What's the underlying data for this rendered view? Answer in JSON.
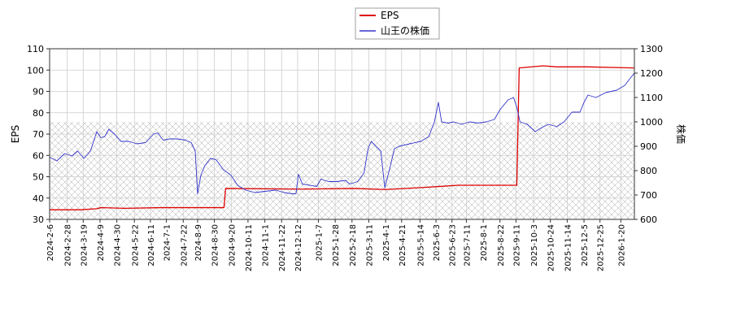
{
  "chart_data": {
    "type": "line",
    "legend": {
      "placement": "top-center",
      "items": [
        {
          "label": "EPS",
          "color": "#dd0000"
        },
        {
          "label": "山王の株価",
          "color": "#3333cc"
        }
      ]
    },
    "ylabel_left": "EPS",
    "ylabel_right": "株価",
    "y_left": {
      "min": 30,
      "max": 110,
      "ticks": [
        30,
        40,
        50,
        60,
        70,
        80,
        90,
        100,
        110
      ]
    },
    "y_right": {
      "min": 600,
      "max": 1300,
      "ticks": [
        600,
        700,
        800,
        900,
        1000,
        1100,
        1200,
        1300
      ]
    },
    "x_range": [
      "2024-02-06",
      "2026-02-06"
    ],
    "x_ticks": [
      "2024-2-6",
      "2024-2-28",
      "2024-3-19",
      "2024-4-9",
      "2024-4-30",
      "2024-5-22",
      "2024-6-11",
      "2024-7-1",
      "2024-7-22",
      "2024-8-9",
      "2024-8-30",
      "2024-9-20",
      "2024-10-11",
      "2024-11-1",
      "2024-11-22",
      "2024-12-12",
      "2025-1-7",
      "2025-1-28",
      "2025-2-18",
      "2025-3-11",
      "2025-4-1",
      "2025-4-21",
      "2025-5-14",
      "2025-6-3",
      "2025-6-23",
      "2025-7-11",
      "2025-8-1",
      "2025-8-22",
      "2025-9-11",
      "2025-10-3",
      "2025-10-24",
      "2025-11-14",
      "2025-12-5",
      "2025-12-25",
      "2026-1-20"
    ],
    "hatch_band_right_axis": [
      600,
      1000
    ],
    "grid": true,
    "series": [
      {
        "name": "EPS",
        "axis": "left",
        "color": "#dd0000",
        "points": [
          [
            "2024-02-06",
            34.5
          ],
          [
            "2024-03-15",
            34.5
          ],
          [
            "2024-04-05",
            35.0
          ],
          [
            "2024-04-10",
            35.5
          ],
          [
            "2024-05-10",
            35.2
          ],
          [
            "2024-06-25",
            35.5
          ],
          [
            "2024-09-11",
            35.5
          ],
          [
            "2024-09-13",
            44.5
          ],
          [
            "2024-12-15",
            44.2
          ],
          [
            "2024-12-17",
            44.2
          ],
          [
            "2025-02-20",
            44.5
          ],
          [
            "2025-04-01",
            44.0
          ],
          [
            "2025-05-20",
            45.0
          ],
          [
            "2025-06-10",
            45.5
          ],
          [
            "2025-07-01",
            46.0
          ],
          [
            "2025-09-12",
            46.0
          ],
          [
            "2025-09-15",
            101.0
          ],
          [
            "2025-10-15",
            102.0
          ],
          [
            "2025-11-01",
            101.5
          ],
          [
            "2025-12-10",
            101.5
          ],
          [
            "2026-02-06",
            101.0
          ]
        ]
      },
      {
        "name": "山王の株価",
        "axis": "right",
        "color": "#3333cc",
        "points": [
          [
            "2024-02-06",
            855
          ],
          [
            "2024-02-15",
            840
          ],
          [
            "2024-02-25",
            870
          ],
          [
            "2024-03-05",
            860
          ],
          [
            "2024-03-12",
            880
          ],
          [
            "2024-03-20",
            850
          ],
          [
            "2024-03-28",
            880
          ],
          [
            "2024-04-05",
            960
          ],
          [
            "2024-04-10",
            935
          ],
          [
            "2024-04-15",
            940
          ],
          [
            "2024-04-20",
            970
          ],
          [
            "2024-04-27",
            950
          ],
          [
            "2024-05-05",
            920
          ],
          [
            "2024-05-15",
            920
          ],
          [
            "2024-05-25",
            910
          ],
          [
            "2024-06-05",
            915
          ],
          [
            "2024-06-15",
            950
          ],
          [
            "2024-06-20",
            955
          ],
          [
            "2024-06-27",
            925
          ],
          [
            "2024-07-05",
            930
          ],
          [
            "2024-07-15",
            930
          ],
          [
            "2024-07-25",
            925
          ],
          [
            "2024-08-01",
            915
          ],
          [
            "2024-08-06",
            880
          ],
          [
            "2024-08-09",
            705
          ],
          [
            "2024-08-13",
            780
          ],
          [
            "2024-08-18",
            820
          ],
          [
            "2024-08-25",
            850
          ],
          [
            "2024-09-01",
            845
          ],
          [
            "2024-09-10",
            805
          ],
          [
            "2024-09-20",
            780
          ],
          [
            "2024-09-28",
            740
          ],
          [
            "2024-10-08",
            720
          ],
          [
            "2024-10-20",
            710
          ],
          [
            "2024-11-01",
            715
          ],
          [
            "2024-11-15",
            720
          ],
          [
            "2024-11-25",
            710
          ],
          [
            "2024-12-05",
            705
          ],
          [
            "2024-12-10",
            705
          ],
          [
            "2024-12-13",
            785
          ],
          [
            "2024-12-18",
            745
          ],
          [
            "2025-01-05",
            735
          ],
          [
            "2025-01-10",
            765
          ],
          [
            "2025-01-20",
            755
          ],
          [
            "2025-01-30",
            755
          ],
          [
            "2025-02-10",
            760
          ],
          [
            "2025-02-15",
            745
          ],
          [
            "2025-02-25",
            755
          ],
          [
            "2025-03-05",
            790
          ],
          [
            "2025-03-10",
            890
          ],
          [
            "2025-03-14",
            920
          ],
          [
            "2025-03-20",
            900
          ],
          [
            "2025-03-26",
            880
          ],
          [
            "2025-03-31",
            730
          ],
          [
            "2025-04-07",
            820
          ],
          [
            "2025-04-12",
            890
          ],
          [
            "2025-04-18",
            900
          ],
          [
            "2025-05-01",
            910
          ],
          [
            "2025-05-15",
            920
          ],
          [
            "2025-05-25",
            940
          ],
          [
            "2025-06-01",
            1000
          ],
          [
            "2025-06-06",
            1080
          ],
          [
            "2025-06-10",
            1000
          ],
          [
            "2025-06-18",
            995
          ],
          [
            "2025-06-25",
            1000
          ],
          [
            "2025-07-05",
            990
          ],
          [
            "2025-07-15",
            1000
          ],
          [
            "2025-07-25",
            995
          ],
          [
            "2025-08-05",
            1000
          ],
          [
            "2025-08-15",
            1010
          ],
          [
            "2025-08-22",
            1050
          ],
          [
            "2025-09-01",
            1090
          ],
          [
            "2025-09-08",
            1100
          ],
          [
            "2025-09-12",
            1060
          ],
          [
            "2025-09-16",
            1000
          ],
          [
            "2025-09-25",
            990
          ],
          [
            "2025-10-05",
            960
          ],
          [
            "2025-10-15",
            980
          ],
          [
            "2025-10-22",
            990
          ],
          [
            "2025-11-01",
            980
          ],
          [
            "2025-11-10",
            1000
          ],
          [
            "2025-11-20",
            1040
          ],
          [
            "2025-11-30",
            1040
          ],
          [
            "2025-12-05",
            1080
          ],
          [
            "2025-12-10",
            1110
          ],
          [
            "2025-12-20",
            1100
          ],
          [
            "2026-01-01",
            1120
          ],
          [
            "2026-01-15",
            1130
          ],
          [
            "2026-01-25",
            1150
          ],
          [
            "2026-02-01",
            1180
          ],
          [
            "2026-02-06",
            1200
          ]
        ]
      }
    ]
  }
}
